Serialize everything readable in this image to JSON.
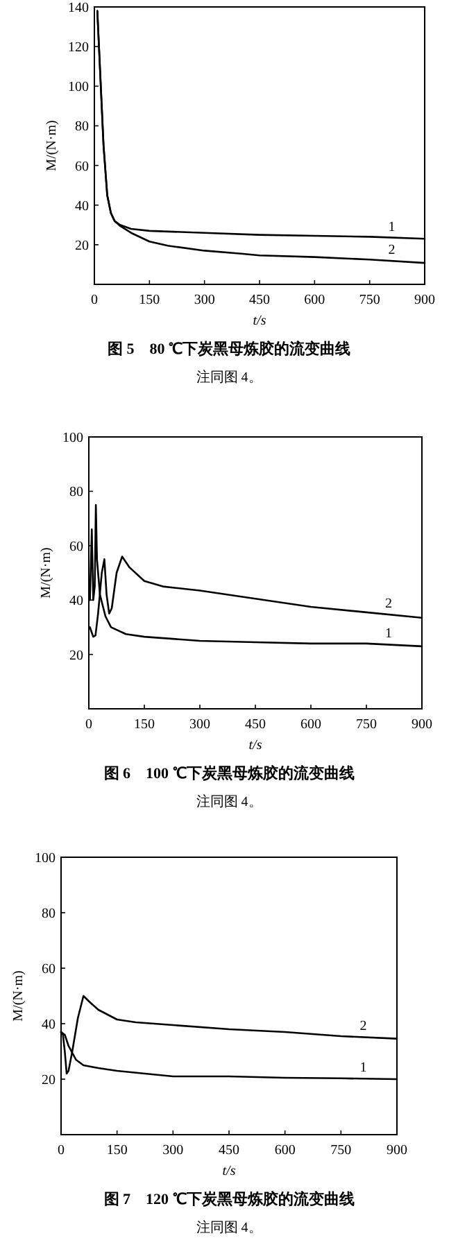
{
  "chart_data": [
    {
      "type": "line",
      "title": "图 5　80 ℃下炭黑母炼胶的流变曲线",
      "xlabel": "t/s",
      "ylabel": "M/(N·m)",
      "xlim": [
        0,
        900
      ],
      "ylim": [
        0,
        140
      ],
      "xticks": [
        0,
        150,
        300,
        450,
        600,
        750,
        900
      ],
      "yticks": [
        20,
        40,
        60,
        80,
        100,
        120,
        140
      ],
      "series": [
        {
          "name": "1",
          "color": "#000000",
          "x": [
            8,
            15,
            25,
            35,
            45,
            55,
            70,
            100,
            150,
            300,
            450,
            600,
            750,
            900
          ],
          "values": [
            138,
            110,
            70,
            45,
            36,
            32,
            30,
            28,
            27,
            26,
            25,
            24.5,
            24,
            23
          ]
        },
        {
          "name": "2",
          "color": "#000000",
          "x": [
            8,
            15,
            25,
            35,
            45,
            55,
            70,
            100,
            150,
            200,
            300,
            400,
            450,
            600,
            750,
            900
          ],
          "values": [
            138,
            110,
            70,
            45,
            36,
            32,
            29.5,
            26,
            21.6,
            19.5,
            17,
            15.5,
            14.6,
            13.8,
            12.5,
            10.8
          ]
        }
      ],
      "annotations": [
        "注同图 4。"
      ]
    },
    {
      "type": "line",
      "title": "图 6　100 ℃下炭黑母炼胶的流变曲线",
      "xlabel": "t/s",
      "ylabel": "M/(N·m)",
      "xlim": [
        0,
        900
      ],
      "ylim": [
        0,
        100
      ],
      "xticks": [
        0,
        150,
        300,
        450,
        600,
        750,
        900
      ],
      "yticks": [
        20,
        40,
        60,
        80,
        100
      ],
      "series": [
        {
          "name": "1",
          "color": "#000000",
          "x": [
            3,
            8,
            12,
            16,
            19,
            22,
            30,
            45,
            60,
            100,
            150,
            300,
            450,
            600,
            750,
            900
          ],
          "values": [
            40,
            66,
            40,
            45,
            75,
            55,
            42,
            34,
            30,
            27.5,
            26.5,
            25,
            24.5,
            24,
            24,
            23
          ]
        },
        {
          "name": "2",
          "color": "#000000",
          "x": [
            3,
            8,
            12,
            18,
            25,
            35,
            42,
            48,
            55,
            62,
            75,
            90,
            110,
            150,
            200,
            300,
            450,
            600,
            750,
            900
          ],
          "values": [
            30,
            28,
            26.5,
            27,
            35,
            50,
            55,
            42,
            35,
            37,
            50,
            56,
            52,
            47,
            45,
            43.5,
            40.5,
            37.5,
            35.5,
            33.5
          ]
        }
      ],
      "annotations": [
        "注同图 4。"
      ]
    },
    {
      "type": "line",
      "title": "图 7　120 ℃下炭黑母炼胶的流变曲线",
      "xlabel": "t/s",
      "ylabel": "M/(N·m)",
      "xlim": [
        0,
        900
      ],
      "ylim": [
        0,
        100
      ],
      "xticks": [
        0,
        150,
        300,
        450,
        600,
        750,
        900
      ],
      "yticks": [
        20,
        40,
        60,
        80,
        100
      ],
      "series": [
        {
          "name": "1",
          "color": "#000000",
          "x": [
            0,
            10,
            20,
            40,
            60,
            100,
            150,
            300,
            450,
            600,
            750,
            900
          ],
          "values": [
            37,
            36,
            32,
            27,
            25,
            24,
            23,
            21,
            21,
            20.5,
            20.3,
            20
          ]
        },
        {
          "name": "2",
          "color": "#000000",
          "x": [
            0,
            5,
            10,
            15,
            20,
            30,
            45,
            60,
            75,
            100,
            150,
            200,
            300,
            450,
            600,
            750,
            900
          ],
          "values": [
            37,
            36,
            30,
            22,
            23,
            30,
            42,
            50,
            48,
            45,
            41.5,
            40.5,
            39.5,
            38,
            37,
            35.5,
            34.6
          ]
        }
      ],
      "annotations": [
        "注同图 4。"
      ]
    }
  ]
}
